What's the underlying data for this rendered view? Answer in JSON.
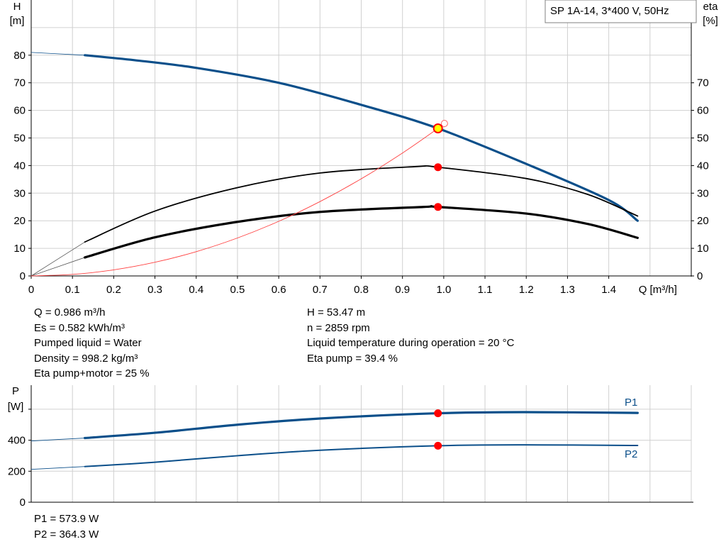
{
  "chart_data": [
    {
      "type": "line",
      "title": "SP 1A-14, 3*400 V, 50Hz",
      "xlabel": "Q [m³/h]",
      "ylabel_left": [
        "H",
        "[m]"
      ],
      "ylabel_right": [
        "eta",
        "[%]"
      ],
      "xlim": [
        0,
        1.6
      ],
      "ylim": [
        0,
        100
      ],
      "x_ticks": [
        "0",
        "0.1",
        "0.2",
        "0.3",
        "0.4",
        "0.5",
        "0.6",
        "0.7",
        "0.8",
        "0.9",
        "1.0",
        "1.1",
        "1.2",
        "1.3",
        "1.4"
      ],
      "y_ticks_left": [
        "0",
        "10",
        "20",
        "30",
        "40",
        "50",
        "60",
        "70",
        "80"
      ],
      "y_ticks_right": [
        "0",
        "10",
        "20",
        "30",
        "40",
        "50",
        "60",
        "70"
      ],
      "grid": true,
      "colors": {
        "head": "#0b4f8a",
        "eta": "#000000",
        "system": "#ff4040",
        "marker": "#ff0000",
        "duty_fill": "#ffff00"
      },
      "series": [
        {
          "key": "H",
          "axis": "left",
          "x": [
            0.13,
            0.25,
            0.4,
            0.6,
            0.8,
            0.986,
            1.2,
            1.4,
            1.47
          ],
          "y": [
            80,
            78.2,
            75.4,
            70,
            62,
            53.47,
            40.6,
            27.5,
            20
          ],
          "extension": {
            "x": [
              0,
              0.13
            ],
            "y": [
              81,
              80
            ]
          }
        },
        {
          "key": "eta_pump",
          "axis": "right",
          "x": [
            0.13,
            0.3,
            0.5,
            0.7,
            0.93,
            0.986,
            1.2,
            1.35,
            1.47
          ],
          "y": [
            12.3,
            23.5,
            32,
            37.3,
            39.6,
            39.4,
            35.3,
            29.5,
            21.7
          ],
          "extension": {
            "x": [
              0,
              0.13
            ],
            "y": [
              0,
              12.3
            ]
          }
        },
        {
          "key": "eta_pump_motor",
          "axis": "right",
          "x": [
            0.13,
            0.3,
            0.5,
            0.7,
            0.95,
            0.986,
            1.2,
            1.35,
            1.47
          ],
          "y": [
            6.7,
            14,
            19.6,
            23.2,
            25,
            25,
            22.6,
            18.8,
            13.8
          ],
          "extension": {
            "x": [
              0,
              0.13
            ],
            "y": [
              0,
              6.7
            ]
          }
        },
        {
          "key": "system_curve",
          "axis": "left",
          "x": [
            0,
            0.1,
            0.2,
            0.3,
            0.4,
            0.5,
            0.6,
            0.7,
            0.8,
            0.9,
            0.986,
            1.0
          ],
          "y": [
            0,
            0.55,
            2.2,
            4.95,
            8.8,
            13.75,
            19.8,
            26.95,
            35.2,
            44.55,
            53.47,
            55
          ]
        }
      ],
      "duty_points": {
        "q": 0.986,
        "H": 53.47,
        "eta_pump": 39.4,
        "eta_pump_motor": 25
      }
    },
    {
      "type": "line",
      "ylabel": [
        "P",
        "[W]"
      ],
      "xlim": [
        0,
        1.6
      ],
      "ylim": [
        0,
        755
      ],
      "y_ticks": [
        "0",
        "200",
        "400"
      ],
      "grid": true,
      "series": [
        {
          "name": "P1",
          "x": [
            0.13,
            0.3,
            0.5,
            0.7,
            0.986,
            1.2,
            1.47
          ],
          "y": [
            414,
            448,
            500,
            540,
            573.9,
            581,
            576
          ],
          "extension": {
            "x": [
              0,
              0.13
            ],
            "y": [
              395,
              414
            ]
          }
        },
        {
          "name": "P2",
          "x": [
            0.13,
            0.3,
            0.5,
            0.7,
            0.986,
            1.2,
            1.47
          ],
          "y": [
            230,
            258,
            300,
            335,
            364.3,
            370,
            366
          ],
          "extension": {
            "x": [
              0,
              0.13
            ],
            "y": [
              212,
              230
            ]
          }
        }
      ],
      "duty_points": {
        "q": 0.986,
        "P1": 573.9,
        "P2": 364.3
      }
    }
  ],
  "info": {
    "left": [
      "Q = 0.986 m³/h",
      "Es = 0.582 kWh/m³",
      "Pumped liquid = Water",
      "Density = 998.2 kg/m³",
      "Eta pump+motor = 25 %"
    ],
    "right": [
      "H = 53.47 m",
      "n = 2859 rpm",
      "Liquid temperature during operation = 20 °C",
      "Eta pump = 39.4 %"
    ],
    "power": [
      "P1 = 573.9 W",
      "P2 = 364.3 W"
    ]
  }
}
